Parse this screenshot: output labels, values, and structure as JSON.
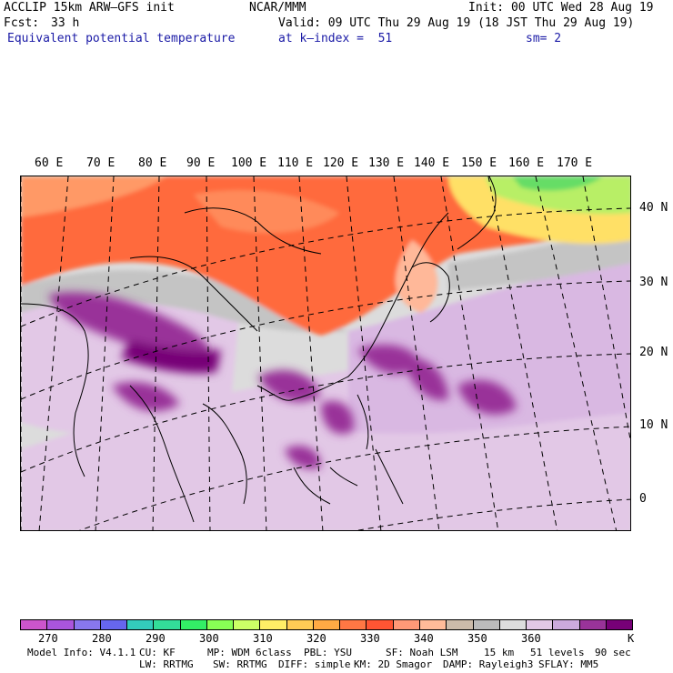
{
  "header": {
    "model": "ACCLIP 15km ARW–GFS init",
    "center": "NCAR/MMM",
    "init": "Init: 00 UTC Wed 28 Aug 19",
    "fcst_label": "Fcst:",
    "fcst_value": "33 h",
    "valid": "Valid: 09 UTC Thu 29 Aug 19 (18 JST Thu 29 Aug 19)",
    "field": "Equivalent potential temperature",
    "level": "at k–index =  51",
    "smooth": "sm= 2"
  },
  "map": {
    "lon_labels": [
      "60 E",
      "70 E",
      "80 E",
      "90 E",
      "100 E",
      "110 E",
      "120 E",
      "130 E",
      "140 E",
      "150 E",
      "160 E",
      "170 E"
    ],
    "lat_labels": [
      "40 N",
      "30 N",
      "20 N",
      "10 N",
      "0"
    ]
  },
  "colorbar": {
    "colors": [
      "#cc55cc",
      "#aa55dd",
      "#8877ee",
      "#6666ee",
      "#33ccbb",
      "#33dd99",
      "#33ee66",
      "#88ff55",
      "#ccff66",
      "#ffee66",
      "#ffcc55",
      "#ffaa44",
      "#ff7744",
      "#ff5533",
      "#ff9977",
      "#ffbb99",
      "#ccbbaa",
      "#bbbbbb",
      "#dddddd",
      "#e2c8e6",
      "#ccaadd",
      "#993399",
      "#770077"
    ],
    "tick_labels": [
      "270",
      "280",
      "290",
      "300",
      "310",
      "320",
      "330",
      "340",
      "350",
      "360"
    ],
    "unit": "K"
  },
  "footer": {
    "line1": [
      {
        "label": "Model Info: V4.1.1"
      },
      {
        "label": "CU: KF"
      },
      {
        "label": "MP: WDM 6class"
      },
      {
        "label": "PBL: YSU"
      },
      {
        "label": "SF: Noah LSM"
      },
      {
        "label": "15 km"
      },
      {
        "label": "51 levels"
      },
      {
        "label": "90 sec"
      }
    ],
    "line2": [
      {
        "label": "LW: RRTMG"
      },
      {
        "label": "SW: RRTMG"
      },
      {
        "label": "DIFF: simple"
      },
      {
        "label": "KM: 2D Smagor"
      },
      {
        "label": "DAMP: Rayleigh3"
      },
      {
        "label": "SFLAY: MM5"
      }
    ]
  }
}
